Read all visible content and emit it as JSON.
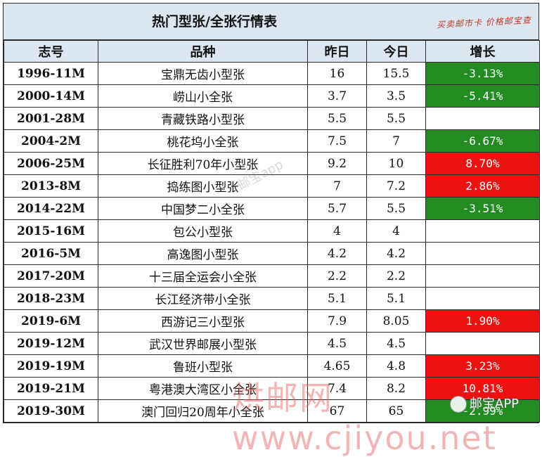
{
  "title": "热门型张/全张行情表",
  "slogan": "买卖邮市卡 价格邮宝查",
  "headers": {
    "code": "志号",
    "name": "品种",
    "yesterday": "昨日",
    "today": "今日",
    "change": "增长"
  },
  "rows": [
    {
      "code": "1996-11M",
      "name": "宝鼎无齿小型张",
      "yesterday": "16",
      "today": "15.5",
      "change": "-3.13%",
      "trend": "down"
    },
    {
      "code": "2000-14M",
      "name": "崂山小全张",
      "yesterday": "3.7",
      "today": "3.5",
      "change": "-5.41%",
      "trend": "down"
    },
    {
      "code": "2001-28M",
      "name": "青藏铁路小型张",
      "yesterday": "5.5",
      "today": "5.5",
      "change": "",
      "trend": "flat"
    },
    {
      "code": "2004-2M",
      "name": "桃花坞小全张",
      "yesterday": "7.5",
      "today": "7",
      "change": "-6.67%",
      "trend": "down"
    },
    {
      "code": "2006-25M",
      "name": "长征胜利70年小型张",
      "yesterday": "9.2",
      "today": "10",
      "change": "8.70%",
      "trend": "up"
    },
    {
      "code": "2013-8M",
      "name": "捣练图小型张",
      "yesterday": "7",
      "today": "7.2",
      "change": "2.86%",
      "trend": "up"
    },
    {
      "code": "2014-22M",
      "name": "中国梦二小全张",
      "yesterday": "5.7",
      "today": "5.5",
      "change": "-3.51%",
      "trend": "down"
    },
    {
      "code": "2015-16M",
      "name": "包公小型张",
      "yesterday": "4",
      "today": "4",
      "change": "",
      "trend": "flat"
    },
    {
      "code": "2016-5M",
      "name": "高逸图小型张",
      "yesterday": "4.2",
      "today": "4.2",
      "change": "",
      "trend": "flat"
    },
    {
      "code": "2017-20M",
      "name": "十三届全运会小全张",
      "yesterday": "2.2",
      "today": "2.2",
      "change": "",
      "trend": "flat"
    },
    {
      "code": "2018-23M",
      "name": "长江经济带小全张",
      "yesterday": "5.1",
      "today": "5.1",
      "change": "",
      "trend": "flat"
    },
    {
      "code": "2019-6M",
      "name": "西游记三小型张",
      "yesterday": "7.9",
      "today": "8.05",
      "change": "1.90%",
      "trend": "up"
    },
    {
      "code": "2019-12M",
      "name": "武汉世界邮展小型张",
      "yesterday": "4.5",
      "today": "4.5",
      "change": "",
      "trend": "flat"
    },
    {
      "code": "2019-19M",
      "name": "鲁班小型张",
      "yesterday": "4.65",
      "today": "4.8",
      "change": "3.23%",
      "trend": "up"
    },
    {
      "code": "2019-21M",
      "name": "粤港澳大湾区小全张",
      "yesterday": "7.4",
      "today": "8.2",
      "change": "10.81%",
      "trend": "up"
    },
    {
      "code": "2019-30M",
      "name": "澳门回归20周年小全张",
      "yesterday": "67",
      "today": "65",
      "change": "-2.99%",
      "trend": "down"
    }
  ],
  "watermarks": {
    "center": "邮宝app",
    "bottom": "烘邮网 www.cjiyou.net",
    "brand": "邮宝APP"
  },
  "colors": {
    "up": "#ee1111",
    "down": "#228b22",
    "header_bg": "#dce6f1"
  }
}
